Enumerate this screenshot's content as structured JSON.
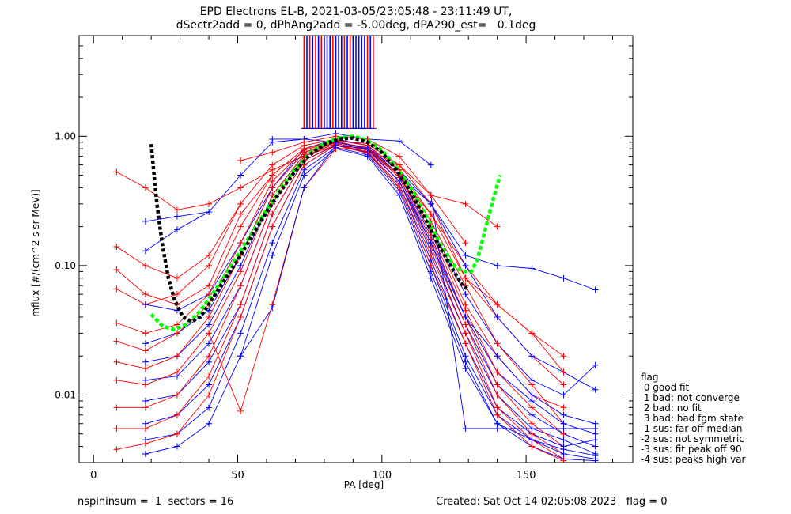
{
  "title_line1": "EPD Electrons EL-B, 2021-03-05/23:05:48 - 23:11:49 UT,",
  "title_line2": "dSectr2add = 0, dPhAng2add = -5.00deg, dPA290_est=   0.1deg",
  "footer": {
    "left": "nspininsum =  1  sectors = 16",
    "right": "Created: Sat Oct 14 02:05:08 2023   flag = 0"
  },
  "legend": {
    "title": "flag",
    "items": [
      " 0 good fit",
      " 1 bad: not converge",
      " 2 bad: no fit",
      " 3 bad: bad fgm state",
      "-1 sus: far off median",
      "-2 sus: not symmetric",
      "-3 sus: fit peak off 90",
      "-4 sus: peaks high var"
    ]
  },
  "colors": {
    "red": "#ff0000",
    "blue": "#0000ff",
    "green": "#00ff00",
    "black": "#000000"
  },
  "chart_data": {
    "type": "line",
    "xlabel": "PA [deg]",
    "ylabel": "mflux [#/(cm^2 s sr MeV)]",
    "xlim": [
      -5,
      187
    ],
    "ylim": [
      0.003,
      6.0
    ],
    "ylog": true,
    "xticks": [
      0,
      50,
      100,
      150
    ],
    "xtick_labels": [
      "0",
      "50",
      "100",
      "150"
    ],
    "yticks": [
      0.01,
      0.1,
      1.0
    ],
    "ytick_labels": [
      "0.01",
      "0.10",
      "1.00"
    ],
    "grid": false,
    "pa_bins": [
      8,
      18,
      29,
      40,
      51,
      62,
      73,
      84,
      95,
      106,
      117,
      129,
      140,
      152,
      163,
      174
    ],
    "series_colors": [
      "red",
      "blue"
    ],
    "sample_curves": [
      {
        "color": "red",
        "x": [
          8,
          18,
          29,
          40,
          51,
          62,
          73,
          84,
          95,
          106,
          117,
          129,
          140
        ],
        "y": [
          0.53,
          0.4,
          0.27,
          0.3,
          0.4,
          0.55,
          0.7,
          0.85,
          0.8,
          0.6,
          0.35,
          0.3,
          0.2
        ]
      },
      {
        "color": "blue",
        "x": [
          18,
          29,
          40,
          51,
          62,
          73,
          84,
          95,
          106,
          117,
          129,
          140,
          152,
          163,
          174
        ],
        "y": [
          0.22,
          0.24,
          0.26,
          0.5,
          0.9,
          0.95,
          0.9,
          0.8,
          0.55,
          0.3,
          0.12,
          0.1,
          0.095,
          0.08,
          0.065
        ]
      },
      {
        "color": "blue",
        "x": [
          18,
          29,
          40
        ],
        "y": [
          0.13,
          0.19,
          0.26
        ]
      },
      {
        "color": "red",
        "x": [
          8,
          18,
          29,
          40,
          51,
          62,
          73,
          84,
          95,
          106,
          117,
          129,
          140,
          152,
          163
        ],
        "y": [
          0.14,
          0.1,
          0.08,
          0.12,
          0.3,
          0.6,
          0.85,
          0.95,
          0.85,
          0.55,
          0.25,
          0.1,
          0.05,
          0.03,
          0.02
        ]
      },
      {
        "color": "red",
        "x": [
          8,
          18,
          29,
          40,
          51,
          62,
          73,
          84,
          95,
          106,
          117,
          129,
          140,
          152,
          163
        ],
        "y": [
          0.093,
          0.06,
          0.05,
          0.07,
          0.25,
          0.5,
          0.8,
          0.92,
          0.88,
          0.6,
          0.3,
          0.08,
          0.04,
          0.02,
          0.012
        ]
      },
      {
        "color": "red",
        "x": [
          8,
          18,
          29,
          40,
          51
        ],
        "y": [
          0.066,
          0.05,
          0.06,
          0.1,
          0.3
        ]
      },
      {
        "color": "blue",
        "x": [
          18,
          29,
          40,
          51,
          62,
          73,
          84,
          95,
          106,
          117,
          129,
          140,
          152,
          163,
          174
        ],
        "y": [
          0.05,
          0.045,
          0.06,
          0.15,
          0.4,
          0.8,
          0.95,
          0.85,
          0.5,
          0.2,
          0.06,
          0.025,
          0.013,
          0.01,
          0.017
        ]
      },
      {
        "color": "red",
        "x": [
          8,
          18,
          29,
          40,
          51,
          62,
          73,
          84,
          95,
          106,
          117,
          129,
          140,
          152,
          163
        ],
        "y": [
          0.036,
          0.03,
          0.035,
          0.06,
          0.2,
          0.5,
          0.8,
          0.93,
          0.85,
          0.55,
          0.22,
          0.07,
          0.025,
          0.012,
          0.006
        ]
      },
      {
        "color": "blue",
        "x": [
          18,
          29,
          40,
          51,
          62,
          73,
          84,
          95,
          106,
          117,
          129,
          140,
          152,
          163,
          174
        ],
        "y": [
          0.025,
          0.03,
          0.045,
          0.12,
          0.4,
          0.75,
          0.9,
          0.82,
          0.5,
          0.17,
          0.04,
          0.015,
          0.009,
          0.006,
          0.005
        ]
      },
      {
        "color": "red",
        "x": [
          8,
          18,
          29,
          40,
          51,
          62,
          73,
          84,
          95,
          106,
          117,
          129,
          140,
          152,
          163
        ],
        "y": [
          0.026,
          0.022,
          0.03,
          0.05,
          0.15,
          0.45,
          0.78,
          0.92,
          0.8,
          0.5,
          0.2,
          0.05,
          0.02,
          0.01,
          0.008
        ]
      },
      {
        "color": "blue",
        "x": [
          18,
          29,
          40,
          51,
          62,
          73,
          84,
          95,
          106,
          117,
          129,
          140,
          152,
          163,
          174
        ],
        "y": [
          0.018,
          0.02,
          0.035,
          0.1,
          0.35,
          0.72,
          0.9,
          0.8,
          0.48,
          0.15,
          0.035,
          0.012,
          0.007,
          0.005,
          0.004
        ]
      },
      {
        "color": "red",
        "x": [
          8,
          18,
          29,
          40,
          51,
          62,
          73,
          84,
          95,
          106,
          117,
          129,
          140,
          152,
          163
        ],
        "y": [
          0.018,
          0.016,
          0.02,
          0.04,
          0.12,
          0.4,
          0.75,
          0.9,
          0.82,
          0.5,
          0.18,
          0.045,
          0.015,
          0.008,
          0.005
        ]
      },
      {
        "color": "blue",
        "x": [
          18,
          29,
          40,
          51,
          62,
          73,
          84,
          95,
          106,
          117,
          129,
          140,
          152,
          163,
          174
        ],
        "y": [
          0.013,
          0.014,
          0.025,
          0.07,
          0.3,
          0.7,
          0.88,
          0.78,
          0.45,
          0.13,
          0.03,
          0.01,
          0.0055,
          0.0045,
          0.0035
        ]
      },
      {
        "color": "red",
        "x": [
          8,
          18,
          29,
          40,
          51,
          62,
          73,
          84,
          95,
          106,
          117,
          129,
          140,
          152,
          163
        ],
        "y": [
          0.013,
          0.012,
          0.015,
          0.03,
          0.09,
          0.35,
          0.72,
          0.9,
          0.8,
          0.48,
          0.16,
          0.04,
          0.012,
          0.006,
          0.004
        ]
      },
      {
        "color": "blue",
        "x": [
          18,
          29,
          40,
          51,
          62,
          73,
          84,
          95,
          106,
          117,
          129,
          140,
          152,
          163,
          174
        ],
        "y": [
          0.009,
          0.01,
          0.018,
          0.05,
          0.25,
          0.65,
          0.85,
          0.76,
          0.42,
          0.11,
          0.025,
          0.008,
          0.005,
          0.004,
          0.0045
        ]
      },
      {
        "color": "red",
        "x": [
          8,
          18,
          29,
          40,
          51,
          62,
          73,
          84,
          95,
          106,
          117,
          129,
          140,
          152,
          163
        ],
        "y": [
          0.008,
          0.008,
          0.01,
          0.02,
          0.07,
          0.3,
          0.7,
          0.88,
          0.78,
          0.45,
          0.14,
          0.035,
          0.01,
          0.005,
          0.0035
        ]
      },
      {
        "color": "blue",
        "x": [
          18,
          29,
          40,
          51,
          62,
          73,
          84,
          95,
          106,
          117,
          129,
          140,
          152,
          163,
          174
        ],
        "y": [
          0.006,
          0.007,
          0.012,
          0.04,
          0.2,
          0.6,
          0.85,
          0.75,
          0.4,
          0.1,
          0.02,
          0.007,
          0.0045,
          0.0035,
          0.0032
        ]
      },
      {
        "color": "red",
        "x": [
          8,
          18,
          29,
          40,
          51,
          62,
          73,
          84,
          95,
          106,
          117,
          129,
          140,
          152,
          163
        ],
        "y": [
          0.0055,
          0.0055,
          0.007,
          0.014,
          0.05,
          0.25,
          0.65,
          0.86,
          0.76,
          0.42,
          0.12,
          0.03,
          0.008,
          0.0045,
          0.0032
        ]
      },
      {
        "color": "blue",
        "x": [
          18,
          29,
          40,
          51,
          62,
          73,
          84,
          95,
          106,
          117,
          129,
          140,
          152,
          163,
          174
        ],
        "y": [
          0.0045,
          0.005,
          0.008,
          0.03,
          0.15,
          0.55,
          0.82,
          0.72,
          0.38,
          0.09,
          0.018,
          0.006,
          0.004,
          0.0032,
          0.0031
        ]
      },
      {
        "color": "red",
        "x": [
          8,
          18,
          29,
          40,
          51,
          62,
          73,
          84,
          95,
          106,
          117,
          129,
          140,
          152,
          163
        ],
        "y": [
          0.0038,
          0.0042,
          0.005,
          0.01,
          0.04,
          0.2,
          0.6,
          0.85,
          0.74,
          0.4,
          0.1,
          0.025,
          0.007,
          0.004,
          0.0031
        ]
      },
      {
        "color": "blue",
        "x": [
          18,
          29,
          40,
          51,
          62,
          73,
          84,
          95,
          106,
          117,
          129,
          140,
          152,
          163,
          174
        ],
        "y": [
          0.0035,
          0.004,
          0.006,
          0.02,
          0.12,
          0.5,
          0.8,
          0.7,
          0.35,
          0.08,
          0.016,
          0.006,
          0.0045,
          0.0038,
          0.0034
        ]
      },
      {
        "color": "red",
        "x": [
          40,
          51,
          62,
          73,
          84,
          95,
          106
        ],
        "y": [
          0.03,
          0.0075,
          0.05,
          0.4,
          0.8,
          0.8,
          0.5
        ]
      },
      {
        "color": "blue",
        "x": [
          51,
          62,
          73,
          84,
          95
        ],
        "y": [
          0.02,
          0.047,
          0.4,
          0.85,
          0.8
        ]
      },
      {
        "color": "blue",
        "x": [
          117,
          129,
          140,
          152,
          163,
          174
        ],
        "y": [
          0.35,
          0.0055,
          0.0055,
          0.0055,
          0.0055,
          0.0055
        ]
      },
      {
        "color": "blue",
        "x": [
          62,
          73,
          84,
          95,
          106,
          117
        ],
        "y": [
          0.95,
          0.95,
          1.05,
          0.95,
          0.92,
          0.6
        ]
      },
      {
        "color": "red",
        "x": [
          51,
          62,
          73,
          84,
          95,
          106,
          117,
          129
        ],
        "y": [
          0.65,
          0.75,
          0.9,
          1.0,
          0.95,
          0.7,
          0.35,
          0.15
        ]
      },
      {
        "color": "blue",
        "x": [
          95,
          106,
          117,
          129,
          140,
          152,
          163,
          174
        ],
        "y": [
          0.8,
          0.5,
          0.3,
          0.1,
          0.04,
          0.02,
          0.015,
          0.011
        ]
      },
      {
        "color": "red",
        "x": [
          95,
          106,
          117,
          129,
          140,
          152,
          163
        ],
        "y": [
          0.8,
          0.5,
          0.25,
          0.08,
          0.05,
          0.03,
          0.015
        ]
      },
      {
        "color": "blue",
        "x": [
          84,
          95,
          106,
          117,
          129,
          140,
          152,
          163,
          174
        ],
        "y": [
          0.9,
          0.8,
          0.45,
          0.15,
          0.04,
          0.02,
          0.01,
          0.007,
          0.006
        ]
      }
    ],
    "saturated_bins_top": {
      "red_x": [
        73,
        75,
        77,
        79,
        83,
        87,
        89,
        95,
        97
      ],
      "blue_x": [
        74,
        76,
        78,
        80,
        81,
        82,
        84,
        85,
        86,
        88,
        90,
        91,
        92,
        93,
        94,
        96
      ],
      "clip_y": 1.15
    },
    "fit_curves": [
      {
        "name": "",
        "color": "green",
        "style": "dashed",
        "x": [
          20,
          24,
          28,
          32,
          36,
          40,
          45,
          50,
          55,
          60,
          65,
          70,
          75,
          80,
          85,
          90,
          95,
          100,
          105,
          110,
          115,
          120,
          125,
          128,
          131,
          133,
          135,
          137,
          139,
          141
        ],
        "y": [
          0.042,
          0.034,
          0.032,
          0.035,
          0.042,
          0.055,
          0.08,
          0.12,
          0.18,
          0.27,
          0.4,
          0.56,
          0.74,
          0.88,
          0.97,
          1.0,
          0.93,
          0.78,
          0.58,
          0.4,
          0.25,
          0.15,
          0.1,
          0.09,
          0.09,
          0.11,
          0.16,
          0.24,
          0.35,
          0.5
        ]
      },
      {
        "name": "",
        "color": "black",
        "style": "dotted",
        "x": [
          20,
          21,
          22,
          23,
          24,
          26,
          28,
          31,
          34,
          37,
          40,
          45,
          50,
          55,
          60,
          65,
          70,
          75,
          80,
          85,
          90,
          95,
          100,
          105,
          110,
          115,
          120,
          125,
          128,
          130
        ],
        "y": [
          0.87,
          0.5,
          0.3,
          0.2,
          0.14,
          0.08,
          0.055,
          0.04,
          0.037,
          0.04,
          0.05,
          0.075,
          0.11,
          0.17,
          0.26,
          0.38,
          0.54,
          0.72,
          0.86,
          0.95,
          0.97,
          0.9,
          0.75,
          0.55,
          0.37,
          0.23,
          0.14,
          0.09,
          0.07,
          0.065
        ]
      }
    ]
  }
}
